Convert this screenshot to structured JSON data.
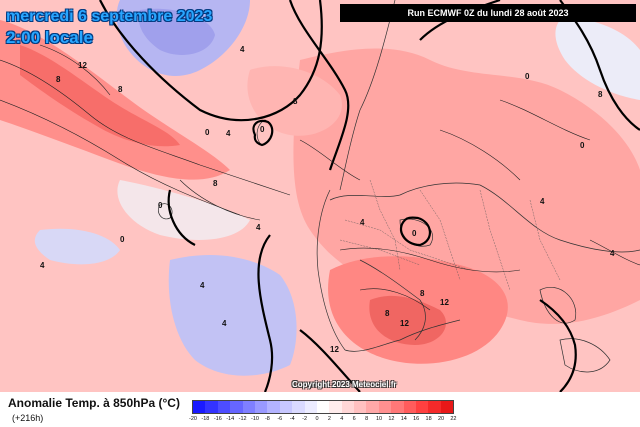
{
  "header": {
    "date_label": "mercredi 6 septembre 2023",
    "time_label": "2:00 locale",
    "run_label": "Run ECMWF 0Z du lundi 28 août 2023"
  },
  "map": {
    "copyright": "Copyright 2023 Meteociel.fr",
    "contour_labels": [
      "12",
      "8",
      "8",
      "0",
      "8",
      "8",
      "0",
      "4",
      "0",
      "0",
      "4",
      "4",
      "0",
      "8",
      "0",
      "0",
      "4",
      "4",
      "8",
      "12",
      "8",
      "12",
      "4",
      "4",
      "4",
      "4",
      "12"
    ]
  },
  "legend": {
    "variable_title": "Anomalie Temp. à 850hPa (°C)",
    "lead_time": "(+216h)",
    "ticks": [
      "-20",
      "-18",
      "-16",
      "-14",
      "-12",
      "-10",
      "-8",
      "-6",
      "-4",
      "-2",
      "0",
      "2",
      "4",
      "6",
      "8",
      "10",
      "12",
      "14",
      "16",
      "18",
      "20",
      "22"
    ],
    "colors": [
      "#1a1aff",
      "#3333ff",
      "#4d4dff",
      "#6666ff",
      "#7f7fff",
      "#9999ff",
      "#b3b3ff",
      "#c7c7ff",
      "#dadaff",
      "#ececff",
      "#ffffff",
      "#ffecec",
      "#ffd6d6",
      "#ffc0c0",
      "#ffa8a8",
      "#ff9090",
      "#ff7878",
      "#ff5c5c",
      "#ff4040",
      "#f52a2a",
      "#e81818"
    ]
  },
  "palette": {
    "warm_base": "#ffb0ae",
    "warm_strong": "#ff8a86",
    "warm_peak": "#f76e6a",
    "cold_base": "#c9c9f7",
    "cold_strong": "#a7a7ef",
    "neutral": "#f4eef0"
  }
}
